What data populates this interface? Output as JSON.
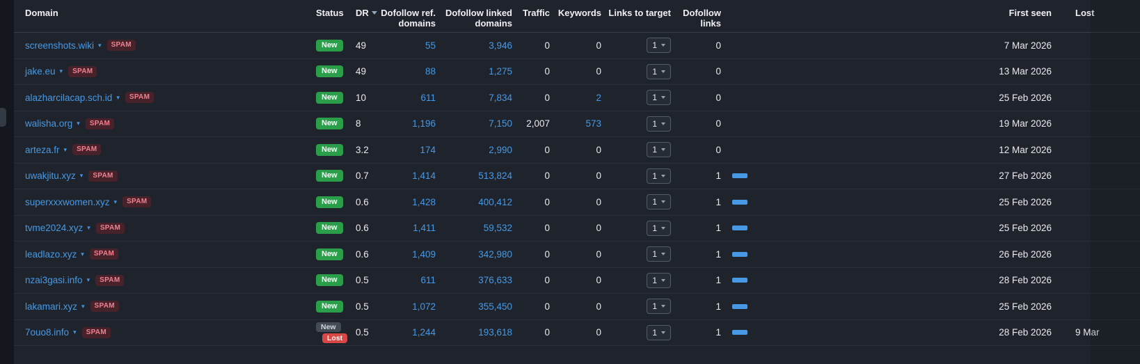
{
  "columns": {
    "domain": "Domain",
    "status": "Status",
    "dr": "DR",
    "dofollow_ref_line1": "Dofollow ref.",
    "dofollow_ref_line2": "domains",
    "dofollow_linked_line1": "Dofollow linked",
    "dofollow_linked_line2": "domains",
    "traffic": "Traffic",
    "keywords": "Keywords",
    "links_to_target": "Links to target",
    "dofollow_links_line1": "Dofollow",
    "dofollow_links_line2": "links",
    "first_seen": "First seen",
    "lost": "Lost"
  },
  "theme": {
    "link_blue": "#4799e6",
    "new_green": "#2b9e4a",
    "lost_red": "#d94646",
    "spam_text": "#f2808f",
    "background": "#1f242c"
  },
  "rows": [
    {
      "domain": "screenshots.wiki",
      "spam": "SPAM",
      "status": [
        {
          "label": "New",
          "type": "new"
        }
      ],
      "dr": "49",
      "ref_domains": "55",
      "linked_domains": "3,946",
      "traffic": "0",
      "keywords": "0",
      "keywords_link": false,
      "links_to_target": "1",
      "dofollow_links": "0",
      "bar": false,
      "first_seen": "7 Mar 2026",
      "lost": ""
    },
    {
      "domain": "jake.eu",
      "spam": "SPAM",
      "status": [
        {
          "label": "New",
          "type": "new"
        }
      ],
      "dr": "49",
      "ref_domains": "88",
      "linked_domains": "1,275",
      "traffic": "0",
      "keywords": "0",
      "keywords_link": false,
      "links_to_target": "1",
      "dofollow_links": "0",
      "bar": false,
      "first_seen": "13 Mar 2026",
      "lost": ""
    },
    {
      "domain": "alazharcilacap.sch.id",
      "spam": "SPAM",
      "status": [
        {
          "label": "New",
          "type": "new"
        }
      ],
      "dr": "10",
      "ref_domains": "611",
      "linked_domains": "7,834",
      "traffic": "0",
      "keywords": "2",
      "keywords_link": true,
      "links_to_target": "1",
      "dofollow_links": "0",
      "bar": false,
      "first_seen": "25 Feb 2026",
      "lost": ""
    },
    {
      "domain": "walisha.org",
      "spam": "SPAM",
      "status": [
        {
          "label": "New",
          "type": "new"
        }
      ],
      "dr": "8",
      "ref_domains": "1,196",
      "linked_domains": "7,150",
      "traffic": "2,007",
      "keywords": "573",
      "keywords_link": true,
      "links_to_target": "1",
      "dofollow_links": "0",
      "bar": false,
      "first_seen": "19 Mar 2026",
      "lost": ""
    },
    {
      "domain": "arteza.fr",
      "spam": "SPAM",
      "status": [
        {
          "label": "New",
          "type": "new"
        }
      ],
      "dr": "3.2",
      "ref_domains": "174",
      "linked_domains": "2,990",
      "traffic": "0",
      "keywords": "0",
      "keywords_link": false,
      "links_to_target": "1",
      "dofollow_links": "0",
      "bar": false,
      "first_seen": "12 Mar 2026",
      "lost": ""
    },
    {
      "domain": "uwakjitu.xyz",
      "spam": "SPAM",
      "status": [
        {
          "label": "New",
          "type": "new"
        }
      ],
      "dr": "0.7",
      "ref_domains": "1,414",
      "linked_domains": "513,824",
      "traffic": "0",
      "keywords": "0",
      "keywords_link": false,
      "links_to_target": "1",
      "dofollow_links": "1",
      "bar": true,
      "first_seen": "27 Feb 2026",
      "lost": ""
    },
    {
      "domain": "superxxxwomen.xyz",
      "spam": "SPAM",
      "status": [
        {
          "label": "New",
          "type": "new"
        }
      ],
      "dr": "0.6",
      "ref_domains": "1,428",
      "linked_domains": "400,412",
      "traffic": "0",
      "keywords": "0",
      "keywords_link": false,
      "links_to_target": "1",
      "dofollow_links": "1",
      "bar": true,
      "first_seen": "25 Feb 2026",
      "lost": ""
    },
    {
      "domain": "tvme2024.xyz",
      "spam": "SPAM",
      "status": [
        {
          "label": "New",
          "type": "new"
        }
      ],
      "dr": "0.6",
      "ref_domains": "1,411",
      "linked_domains": "59,532",
      "traffic": "0",
      "keywords": "0",
      "keywords_link": false,
      "links_to_target": "1",
      "dofollow_links": "1",
      "bar": true,
      "first_seen": "25 Feb 2026",
      "lost": ""
    },
    {
      "domain": "leadlazo.xyz",
      "spam": "SPAM",
      "status": [
        {
          "label": "New",
          "type": "new"
        }
      ],
      "dr": "0.6",
      "ref_domains": "1,409",
      "linked_domains": "342,980",
      "traffic": "0",
      "keywords": "0",
      "keywords_link": false,
      "links_to_target": "1",
      "dofollow_links": "1",
      "bar": true,
      "first_seen": "26 Feb 2026",
      "lost": ""
    },
    {
      "domain": "nzai3gasi.info",
      "spam": "SPAM",
      "status": [
        {
          "label": "New",
          "type": "new"
        }
      ],
      "dr": "0.5",
      "ref_domains": "611",
      "linked_domains": "376,633",
      "traffic": "0",
      "keywords": "0",
      "keywords_link": false,
      "links_to_target": "1",
      "dofollow_links": "1",
      "bar": true,
      "first_seen": "28 Feb 2026",
      "lost": ""
    },
    {
      "domain": "lakamari.xyz",
      "spam": "SPAM",
      "status": [
        {
          "label": "New",
          "type": "new"
        }
      ],
      "dr": "0.5",
      "ref_domains": "1,072",
      "linked_domains": "355,450",
      "traffic": "0",
      "keywords": "0",
      "keywords_link": false,
      "links_to_target": "1",
      "dofollow_links": "1",
      "bar": true,
      "first_seen": "25 Feb 2026",
      "lost": ""
    },
    {
      "domain": "7ouo8.info",
      "spam": "SPAM",
      "status": [
        {
          "label": "New",
          "type": "new-muted"
        },
        {
          "label": "Lost",
          "type": "lost"
        }
      ],
      "dr": "0.5",
      "ref_domains": "1,244",
      "linked_domains": "193,618",
      "traffic": "0",
      "keywords": "0",
      "keywords_link": false,
      "links_to_target": "1",
      "dofollow_links": "1",
      "bar": true,
      "first_seen": "28 Feb 2026",
      "lost": "9 Mar"
    }
  ]
}
